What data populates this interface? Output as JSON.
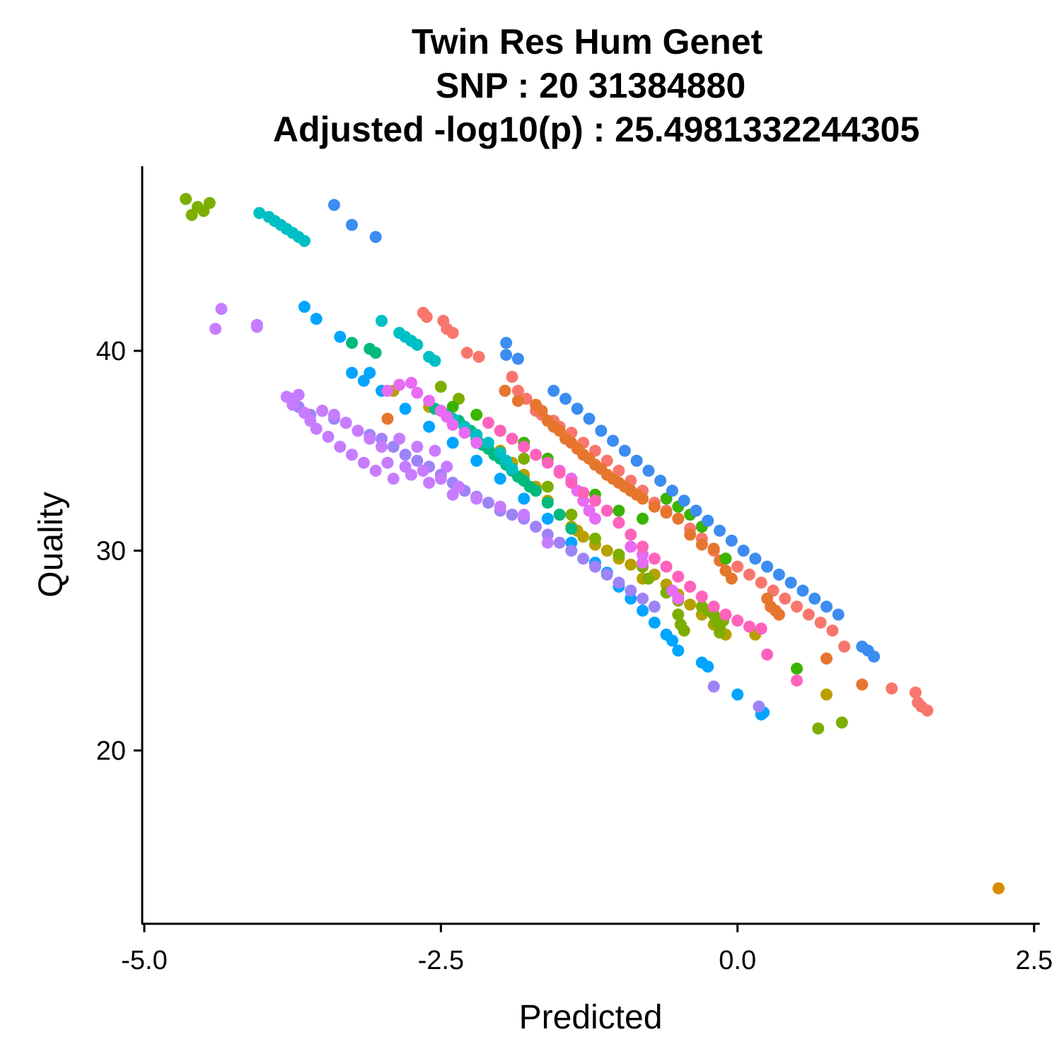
{
  "chart_data": {
    "type": "scatter",
    "title": [
      "Twin Res Hum Genet",
      "SNP :  20 31384880",
      "Adjusted -log10(p) :  25.4981332244305"
    ],
    "xlabel": "Predicted",
    "ylabel": "Quality",
    "xlim": [
      -5.0,
      2.5
    ],
    "ylim": [
      12.0,
      49.0
    ],
    "x_ticks": [
      -5.0,
      -2.5,
      0.0,
      2.5
    ],
    "x_tick_labels": [
      "-5.0",
      "-2.5",
      "0.0",
      "2.5"
    ],
    "y_ticks": [
      20,
      30,
      40
    ],
    "y_tick_labels": [
      "20",
      "30",
      "40"
    ],
    "grid": false,
    "legend": "none",
    "series": [
      {
        "color": "#F8766D",
        "x": [
          -2.65,
          -2.62,
          -2.48,
          -2.45,
          -2.4,
          -2.28,
          -2.18,
          -1.9,
          -1.85,
          -1.78,
          -1.7,
          -1.65,
          -1.55,
          -1.5,
          -1.4,
          -1.3,
          -1.2,
          -1.1,
          -1.0,
          -0.9,
          -0.8,
          -0.7,
          -0.6,
          -0.5,
          -0.4,
          -0.3,
          -0.2,
          -0.1,
          0.0,
          0.1,
          0.2,
          0.3,
          0.4,
          0.5,
          0.6,
          0.7,
          0.8,
          0.9,
          1.3,
          1.5,
          1.52,
          1.55,
          1.6
        ],
        "y": [
          41.9,
          41.7,
          41.5,
          41.1,
          40.9,
          39.9,
          39.7,
          38.7,
          38.0,
          37.6,
          37.0,
          36.8,
          36.5,
          36.2,
          35.9,
          35.4,
          35.0,
          34.5,
          34.0,
          33.5,
          33.0,
          32.4,
          32.0,
          31.6,
          31.1,
          30.6,
          30.0,
          29.6,
          29.2,
          28.8,
          28.4,
          28.0,
          27.6,
          27.2,
          26.8,
          26.4,
          26.0,
          25.2,
          23.1,
          22.9,
          22.4,
          22.2,
          22.0
        ]
      },
      {
        "color": "#E6762D",
        "x": [
          -2.95,
          -1.96,
          -1.85,
          -1.7,
          -1.65,
          -1.6,
          -1.55,
          -1.5,
          -1.45,
          -1.4,
          -1.35,
          -1.3,
          -1.25,
          -1.2,
          -1.15,
          -1.1,
          -1.05,
          -1.0,
          -0.95,
          -0.9,
          -0.85,
          -0.8,
          -0.7,
          -0.6,
          -0.5,
          -0.4,
          -0.3,
          -0.2,
          -0.15,
          -0.1,
          -0.05,
          0.25,
          0.28,
          0.32,
          0.35,
          0.75,
          1.05
        ],
        "y": [
          36.6,
          38.0,
          37.5,
          37.3,
          37.0,
          36.5,
          36.2,
          36.0,
          35.6,
          35.4,
          35.1,
          34.8,
          34.6,
          34.3,
          34.1,
          33.8,
          33.6,
          33.4,
          33.2,
          33.0,
          32.8,
          32.6,
          32.2,
          31.9,
          31.6,
          30.8,
          30.3,
          30.1,
          29.5,
          29.0,
          28.6,
          27.6,
          27.2,
          27.0,
          26.8,
          24.6,
          23.3
        ]
      },
      {
        "color": "#D98C00",
        "x": [
          2.2
        ],
        "y": [
          13.1
        ]
      },
      {
        "color": "#B8A000",
        "x": [
          -2.9,
          -2.6,
          -2.4,
          -2.2,
          -2.0,
          -1.9,
          -1.8,
          -1.7,
          -1.6,
          -1.5,
          -1.4,
          -1.35,
          -1.3,
          -1.2,
          -1.1,
          -1.0,
          -0.9,
          -0.8,
          -0.7,
          -0.6,
          -0.5,
          -0.4,
          -0.3,
          -0.2,
          -0.1,
          0.15,
          0.75
        ],
        "y": [
          38.0,
          37.2,
          36.5,
          35.8,
          35.0,
          34.4,
          33.8,
          33.2,
          32.5,
          31.8,
          31.2,
          31.0,
          30.7,
          30.3,
          30.0,
          29.6,
          29.3,
          28.6,
          28.8,
          28.3,
          27.8,
          27.3,
          26.8,
          26.3,
          25.8,
          25.8,
          22.8
        ]
      },
      {
        "color": "#7CAE00",
        "x": [
          -4.65,
          -4.6,
          -4.55,
          -4.5,
          -4.45,
          -2.5,
          -2.35,
          -2.0,
          -1.8,
          -1.6,
          -1.4,
          -1.2,
          -1.0,
          -0.8,
          -0.75,
          -0.6,
          -0.5,
          -0.5,
          -0.48,
          -0.45,
          -0.3,
          -0.25,
          -0.2,
          -0.18,
          -0.15,
          -0.15,
          -0.12,
          0.68,
          0.88
        ],
        "y": [
          47.6,
          46.8,
          47.2,
          47.0,
          47.4,
          38.2,
          37.6,
          36.0,
          34.6,
          33.2,
          31.8,
          30.6,
          29.8,
          29.2,
          28.6,
          27.9,
          27.5,
          26.8,
          26.3,
          26.0,
          27.2,
          27.0,
          26.8,
          26.4,
          26.2,
          25.9,
          26.5,
          21.1,
          21.4
        ]
      },
      {
        "color": "#3BB400",
        "x": [
          -2.4,
          -2.2,
          -1.8,
          -1.6,
          -1.4,
          -1.2,
          -1.0,
          -0.8,
          -0.6,
          -0.5,
          -0.4,
          -0.3,
          -0.1,
          0.5
        ],
        "y": [
          37.2,
          36.8,
          35.4,
          34.6,
          33.6,
          32.8,
          32.0,
          31.6,
          32.6,
          32.2,
          31.8,
          31.2,
          29.6,
          24.1
        ]
      },
      {
        "color": "#00BA7D",
        "x": [
          -3.25,
          -3.1,
          -3.05,
          -2.55,
          -2.45,
          -2.35,
          -2.3,
          -2.25,
          -2.2,
          -2.15,
          -2.1,
          -2.05,
          -2.0,
          -1.95,
          -1.9,
          -1.85,
          -1.8,
          -1.75,
          -1.7,
          -1.6,
          -1.5,
          -1.4
        ],
        "y": [
          40.4,
          40.1,
          39.9,
          37.1,
          36.8,
          36.5,
          36.2,
          36.0,
          35.6,
          35.3,
          35.1,
          34.8,
          34.6,
          34.3,
          34.0,
          33.7,
          33.5,
          33.2,
          33.0,
          32.4,
          31.8,
          31.1
        ]
      },
      {
        "color": "#00BFC4",
        "x": [
          -4.03,
          -3.95,
          -3.9,
          -3.85,
          -3.8,
          -3.75,
          -3.7,
          -3.65,
          -3.0,
          -2.85,
          -2.8,
          -2.75,
          -2.7,
          -2.6,
          -2.55,
          -2.5,
          -2.4,
          -2.3,
          -2.2,
          -2.1,
          -2.0,
          -1.95,
          -1.9
        ],
        "y": [
          46.9,
          46.7,
          46.5,
          46.3,
          46.1,
          45.9,
          45.7,
          45.5,
          41.5,
          40.9,
          40.7,
          40.5,
          40.3,
          39.7,
          39.5,
          37.0,
          36.6,
          36.2,
          35.8,
          35.4,
          34.9,
          34.5,
          34.1
        ]
      },
      {
        "color": "#00A5FF",
        "x": [
          -3.65,
          -3.55,
          -3.35,
          -3.25,
          -3.15,
          -3.1,
          -3.0,
          -2.8,
          -2.6,
          -2.4,
          -2.2,
          -2.0,
          -1.8,
          -1.6,
          -1.4,
          -1.2,
          -1.1,
          -1.0,
          -0.9,
          -0.8,
          -0.7,
          -0.6,
          -0.55,
          -0.5,
          -0.3,
          -0.25,
          0.0,
          0.2,
          0.22
        ],
        "y": [
          42.2,
          41.6,
          40.7,
          38.9,
          38.5,
          38.9,
          38.0,
          37.1,
          36.2,
          35.4,
          34.5,
          33.6,
          32.6,
          31.6,
          30.4,
          29.4,
          28.9,
          28.2,
          27.6,
          27.0,
          26.4,
          25.8,
          25.5,
          25.0,
          24.4,
          24.2,
          22.8,
          21.8,
          21.9
        ]
      },
      {
        "color": "#3C8CF2",
        "x": [
          -3.4,
          -3.25,
          -3.05,
          -1.95,
          -1.95,
          -1.85,
          -1.55,
          -1.45,
          -1.35,
          -1.25,
          -1.15,
          -1.05,
          -0.95,
          -0.85,
          -0.75,
          -0.65,
          -0.55,
          -0.45,
          -0.35,
          -0.25,
          -0.15,
          -0.05,
          0.05,
          0.15,
          0.25,
          0.35,
          0.45,
          0.55,
          0.65,
          0.75,
          0.85,
          1.05,
          1.1,
          1.15
        ],
        "y": [
          47.3,
          46.3,
          45.7,
          40.4,
          39.8,
          39.6,
          38.0,
          37.6,
          37.1,
          36.6,
          36.0,
          35.5,
          35.0,
          34.5,
          34.0,
          33.5,
          33.0,
          32.5,
          32.0,
          31.5,
          31.0,
          30.5,
          30.0,
          29.6,
          29.2,
          28.8,
          28.4,
          28.0,
          27.6,
          27.2,
          26.8,
          25.2,
          25.0,
          24.7
        ]
      },
      {
        "color": "#9E83F7",
        "x": [
          -3.75,
          -3.7,
          -3.6,
          -3.5,
          -3.4,
          -3.3,
          -3.2,
          -3.1,
          -3.0,
          -2.9,
          -2.8,
          -2.7,
          -2.6,
          -2.5,
          -2.4,
          -2.3,
          -2.2,
          -2.1,
          -2.0,
          -1.9,
          -1.8,
          -1.7,
          -1.6,
          -1.5,
          -1.4,
          -1.3,
          -1.2,
          -1.1,
          -1.0,
          -0.9,
          -0.8,
          -0.7,
          -0.2,
          0.18
        ],
        "y": [
          37.6,
          37.2,
          36.8,
          37.0,
          36.6,
          36.4,
          36.0,
          35.8,
          35.6,
          35.2,
          34.8,
          34.5,
          34.2,
          33.8,
          33.4,
          33.0,
          32.7,
          32.4,
          32.0,
          31.8,
          31.6,
          31.2,
          30.8,
          30.4,
          30.0,
          29.6,
          29.2,
          28.8,
          28.4,
          28.0,
          27.6,
          27.2,
          23.2,
          22.2
        ]
      },
      {
        "color": "#C77CFF",
        "x": [
          -4.4,
          -4.35,
          -4.05,
          -4.05,
          -3.8,
          -3.75,
          -3.7,
          -3.65,
          -3.6,
          -3.55,
          -3.5,
          -3.45,
          -3.4,
          -3.35,
          -3.3,
          -3.25,
          -3.2,
          -3.15,
          -3.1,
          -3.05,
          -3.0,
          -2.95,
          -2.9,
          -2.85,
          -2.8,
          -2.75,
          -2.7,
          -2.65,
          -2.6,
          -2.55,
          -2.5,
          -2.45,
          -2.4,
          -2.35,
          -2.2,
          -2.0,
          -1.8,
          -1.6
        ],
        "y": [
          41.1,
          42.1,
          41.2,
          41.3,
          37.7,
          37.3,
          37.8,
          36.9,
          36.5,
          36.1,
          37.0,
          35.7,
          36.8,
          35.2,
          36.4,
          34.8,
          36.0,
          34.4,
          35.6,
          34.0,
          35.2,
          34.4,
          33.6,
          35.6,
          34.2,
          33.8,
          35.2,
          34.0,
          33.4,
          35.0,
          33.6,
          34.2,
          32.8,
          33.2,
          32.6,
          32.2,
          31.8,
          30.4
        ]
      },
      {
        "color": "#E76BF3",
        "x": [
          -2.95,
          -2.85,
          -2.75,
          -2.7,
          -2.6,
          -2.5,
          -2.45,
          -2.4,
          -2.3,
          -2.2,
          -1.5,
          -1.4,
          -1.35,
          -1.3,
          -1.25,
          -1.2,
          -0.9,
          -0.8,
          -0.8,
          -0.55,
          -0.5
        ],
        "y": [
          38.0,
          38.3,
          38.4,
          37.9,
          37.5,
          37.0,
          36.7,
          36.3,
          35.9,
          35.4,
          34.0,
          33.6,
          33.0,
          32.5,
          32.0,
          31.6,
          30.2,
          29.8,
          29.4,
          28.0,
          27.6
        ]
      },
      {
        "color": "#FF62BC",
        "x": [
          -2.1,
          -2.0,
          -1.9,
          -1.8,
          -1.7,
          -1.6,
          -1.5,
          -1.4,
          -1.3,
          -1.2,
          -1.1,
          -1.0,
          -0.9,
          -0.8,
          -0.7,
          -0.6,
          -0.5,
          -0.4,
          -0.3,
          -0.2,
          -0.1,
          0.0,
          0.1,
          0.2,
          0.25,
          0.5
        ],
        "y": [
          36.4,
          36.0,
          35.6,
          35.2,
          34.8,
          34.4,
          33.9,
          33.4,
          32.9,
          32.5,
          32.0,
          31.4,
          30.8,
          30.2,
          29.6,
          29.2,
          28.7,
          28.2,
          27.7,
          27.2,
          26.8,
          26.5,
          26.2,
          26.1,
          24.8,
          23.5
        ]
      }
    ]
  }
}
